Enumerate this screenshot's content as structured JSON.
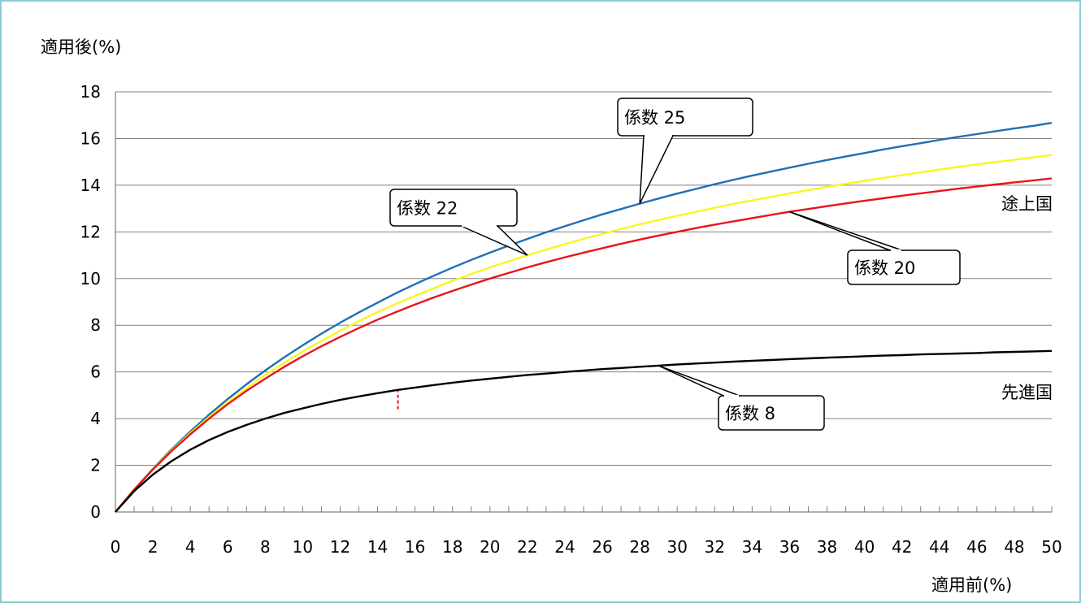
{
  "chart_data": {
    "type": "line",
    "ylabel": "適用後(%)",
    "xlabel": "適用前(%)",
    "xlim": [
      0,
      50
    ],
    "ylim": [
      0,
      18
    ],
    "x_ticks": [
      0,
      2,
      4,
      6,
      8,
      10,
      12,
      14,
      16,
      18,
      20,
      22,
      24,
      26,
      28,
      30,
      32,
      34,
      36,
      38,
      40,
      42,
      44,
      46,
      48,
      50
    ],
    "y_ticks": [
      0,
      2,
      4,
      6,
      8,
      10,
      12,
      14,
      16,
      18
    ],
    "grid": "horizontal",
    "x": [
      0,
      1,
      2,
      3,
      4,
      5,
      6,
      7,
      8,
      9,
      10,
      11,
      12,
      13,
      14,
      15,
      16,
      17,
      18,
      19,
      20,
      21,
      22,
      23,
      24,
      25,
      26,
      27,
      28,
      29,
      30,
      31,
      32,
      33,
      34,
      35,
      36,
      37,
      38,
      39,
      40,
      41,
      42,
      43,
      44,
      45,
      46,
      47,
      48,
      49,
      50
    ],
    "series": [
      {
        "name": "係数 25",
        "color": "#1f6fb4",
        "values": [
          0,
          0.96,
          1.85,
          2.68,
          3.45,
          4.17,
          4.84,
          5.47,
          6.06,
          6.62,
          7.14,
          7.64,
          8.11,
          8.55,
          8.97,
          9.38,
          9.76,
          10.12,
          10.47,
          10.8,
          11.11,
          11.41,
          11.7,
          11.98,
          12.24,
          12.5,
          12.75,
          12.98,
          13.21,
          13.43,
          13.64,
          13.84,
          14.04,
          14.23,
          14.41,
          14.58,
          14.75,
          14.92,
          15.08,
          15.23,
          15.38,
          15.53,
          15.67,
          15.8,
          15.94,
          16.07,
          16.19,
          16.31,
          16.43,
          16.54,
          16.67
        ]
      },
      {
        "name": "係数 22",
        "color": "#f7f71f",
        "values": [
          0,
          0.96,
          1.83,
          2.64,
          3.38,
          4.07,
          4.71,
          5.3,
          5.87,
          6.39,
          6.88,
          7.33,
          7.76,
          8.17,
          8.56,
          8.92,
          9.26,
          9.59,
          9.9,
          10.19,
          10.48,
          10.74,
          11.0,
          11.24,
          11.48,
          11.7,
          11.91,
          12.12,
          12.32,
          12.51,
          12.69,
          12.86,
          13.03,
          13.2,
          13.35,
          13.5,
          13.65,
          13.79,
          13.93,
          14.06,
          14.19,
          14.31,
          14.43,
          14.55,
          14.67,
          14.78,
          14.89,
          14.99,
          15.09,
          15.19,
          15.29
        ]
      },
      {
        "name": "係数 20",
        "color": "#e8141c",
        "values": [
          0,
          0.95,
          1.82,
          2.61,
          3.33,
          4.0,
          4.62,
          5.19,
          5.71,
          6.21,
          6.67,
          7.1,
          7.5,
          7.88,
          8.24,
          8.57,
          8.89,
          9.19,
          9.47,
          9.74,
          10.0,
          10.24,
          10.48,
          10.7,
          10.91,
          11.11,
          11.3,
          11.49,
          11.67,
          11.84,
          12.0,
          12.16,
          12.31,
          12.45,
          12.59,
          12.73,
          12.86,
          12.98,
          13.1,
          13.22,
          13.33,
          13.44,
          13.55,
          13.65,
          13.75,
          13.85,
          13.94,
          14.03,
          14.12,
          14.2,
          14.29
        ]
      },
      {
        "name": "係数 8",
        "color": "#000000",
        "values": [
          0,
          0.89,
          1.6,
          2.18,
          2.67,
          3.08,
          3.43,
          3.73,
          4.0,
          4.24,
          4.44,
          4.63,
          4.8,
          4.95,
          5.09,
          5.22,
          5.33,
          5.44,
          5.54,
          5.63,
          5.71,
          5.79,
          5.87,
          5.93,
          6.0,
          6.06,
          6.12,
          6.17,
          6.22,
          6.27,
          6.32,
          6.36,
          6.4,
          6.44,
          6.48,
          6.51,
          6.55,
          6.58,
          6.61,
          6.64,
          6.67,
          6.7,
          6.72,
          6.75,
          6.77,
          6.79,
          6.81,
          6.84,
          6.86,
          6.88,
          6.9
        ]
      }
    ],
    "callouts": [
      {
        "text": "係数 25",
        "target_x": 28,
        "target_y": 13.21
      },
      {
        "text": "係数 22",
        "target_x": 22,
        "target_y": 11.0
      },
      {
        "text": "係数 20",
        "target_x": 36,
        "target_y": 12.86
      },
      {
        "text": "係数 8",
        "target_x": 29,
        "target_y": 6.27
      }
    ],
    "side_labels": [
      "途上国",
      "先進国"
    ],
    "marker": {
      "x": 15,
      "y_from": 4.4,
      "y_to": 5.2,
      "color": "#e8141c"
    }
  }
}
